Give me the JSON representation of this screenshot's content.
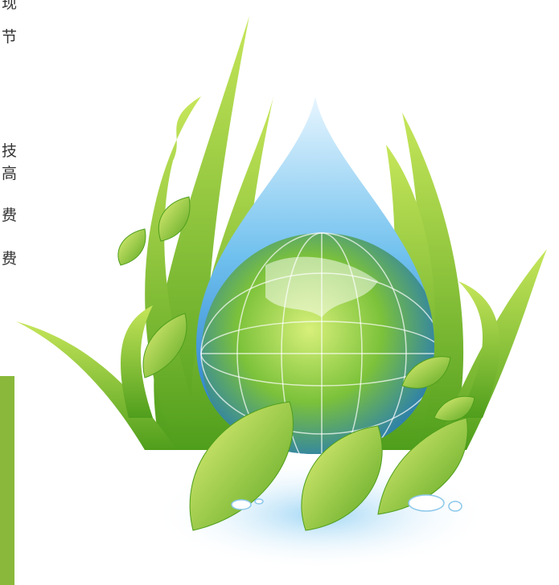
{
  "text_fragments": [
    "现",
    "节",
    "技",
    "高",
    "费",
    "费"
  ]
}
